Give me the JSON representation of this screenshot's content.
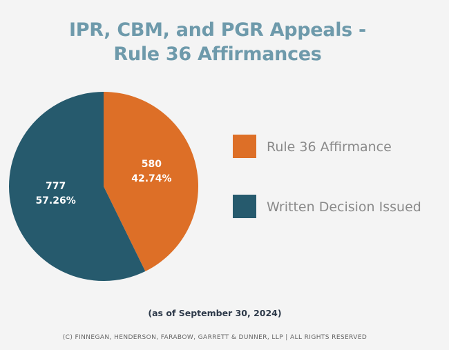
{
  "chart_data": {
    "type": "pie",
    "title_lines": [
      "IPR, CBM, and PGR Appeals -",
      "Rule 36 Affirmances"
    ],
    "slices": [
      {
        "name": "Rule 36 Affirmance",
        "value": 580,
        "percent_label": "42.74%",
        "color": "#dd6f27"
      },
      {
        "name": "Written Decision Issued",
        "value": 777,
        "percent_label": "57.26%",
        "color": "#265a6d"
      }
    ],
    "legend_position": "right",
    "start_angle": "12 o'clock, clockwise"
  },
  "note": "(as of September 30, 2024)",
  "copyright": "(C) FINNEGAN, HENDERSON, FARABOW, GARRETT & DUNNER, LLP | ALL RIGHTS RESERVED",
  "colors": {
    "background": "#f4f4f4",
    "title": "#6e9aab",
    "legend_text": "#8a8a8a",
    "note_text": "#2e3a4a",
    "copyright_text": "#666666",
    "slice_label": "#ffffff"
  }
}
